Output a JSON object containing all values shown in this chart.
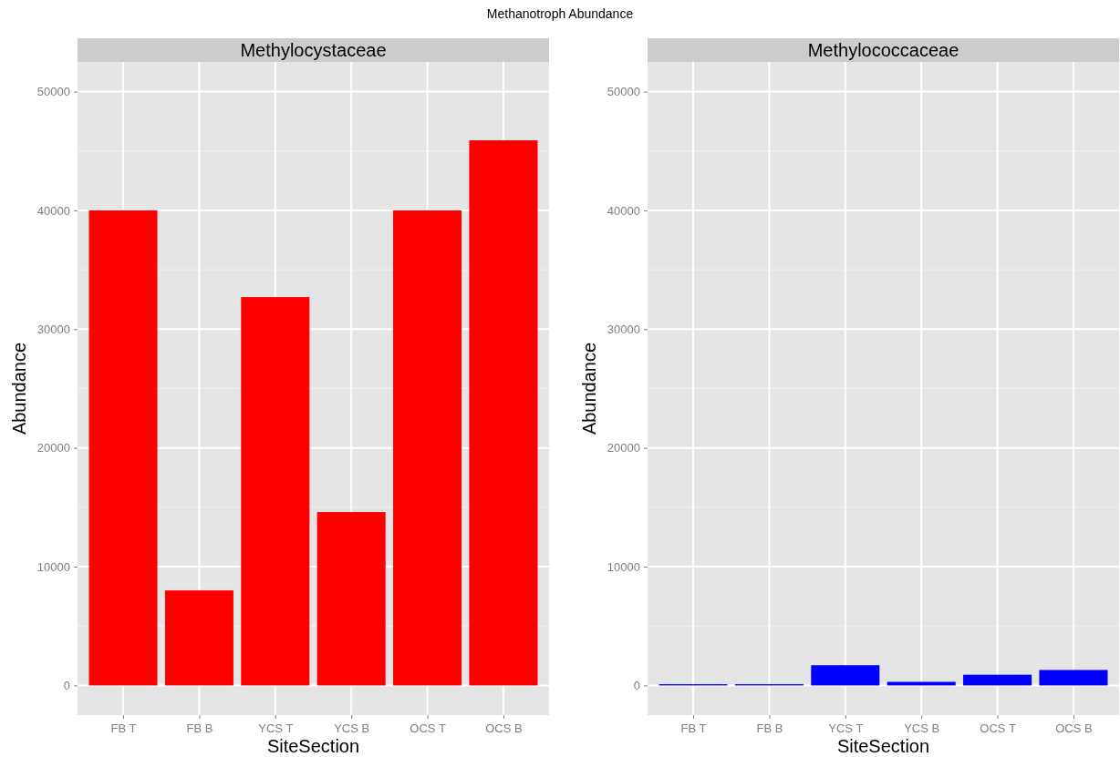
{
  "chart_data": [
    {
      "type": "bar",
      "title": "Methanotroph Abundance",
      "subtitle": "Methylocystaceae",
      "xlabel": "SiteSection",
      "ylabel": "Abundance",
      "categories": [
        "FB T",
        "FB B",
        "YCS T",
        "YCS B",
        "OCS T",
        "OCS B"
      ],
      "series": [
        {
          "color": "#ff0000",
          "values": [
            40000,
            8000,
            32700,
            14600,
            40000,
            45900
          ]
        }
      ],
      "ylim": [
        -2500,
        52500
      ],
      "yticks": [
        0,
        10000,
        20000,
        30000,
        40000,
        50000
      ],
      "grid": true
    },
    {
      "type": "bar",
      "subtitle": "Methylococcaceae",
      "xlabel": "SiteSection",
      "ylabel": "Abundance",
      "categories": [
        "FB T",
        "FB B",
        "YCS T",
        "YCS B",
        "OCS T",
        "OCS B"
      ],
      "series": [
        {
          "color": "#0000ff",
          "values": [
            100,
            100,
            1700,
            300,
            900,
            1300
          ]
        }
      ],
      "ylim": [
        -2500,
        52500
      ],
      "yticks": [
        0,
        10000,
        20000,
        30000,
        40000,
        50000
      ],
      "grid": true
    }
  ]
}
